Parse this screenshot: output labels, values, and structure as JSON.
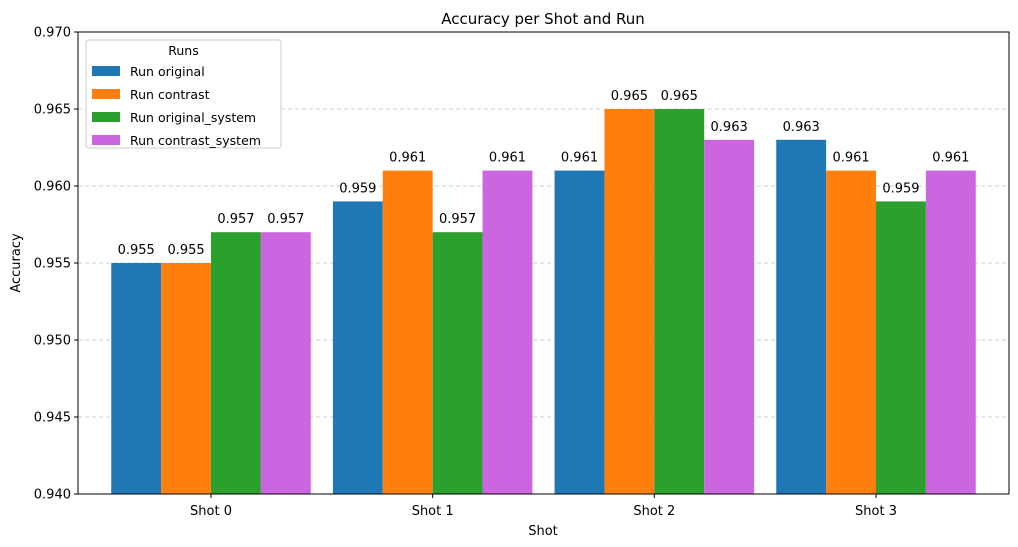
{
  "chart_data": {
    "type": "bar",
    "title": "Accuracy per Shot and Run",
    "xlabel": "Shot",
    "ylabel": "Accuracy",
    "categories": [
      "Shot 0",
      "Shot 1",
      "Shot 2",
      "Shot 3"
    ],
    "ylim": [
      0.94,
      0.97
    ],
    "yticks": [
      "0.940",
      "0.945",
      "0.950",
      "0.955",
      "0.960",
      "0.965",
      "0.970"
    ],
    "grid": "y-dashed",
    "legend": {
      "title": "Runs",
      "placement": "top-left"
    },
    "series": [
      {
        "name": "Run original",
        "color": "#1f77b4",
        "values": [
          0.955,
          0.959,
          0.961,
          0.963
        ],
        "labels": [
          "0.955",
          "0.959",
          "0.961",
          "0.963"
        ]
      },
      {
        "name": "Run contrast",
        "color": "#ff7f0e",
        "values": [
          0.955,
          0.961,
          0.965,
          0.961
        ],
        "labels": [
          "0.955",
          "0.961",
          "0.965",
          "0.961"
        ]
      },
      {
        "name": "Run original_system",
        "color": "#2ca02c",
        "values": [
          0.957,
          0.957,
          0.965,
          0.959
        ],
        "labels": [
          "0.957",
          "0.957",
          "0.965",
          "0.959"
        ]
      },
      {
        "name": "Run contrast_system",
        "color": "#cc66e0",
        "values": [
          0.957,
          0.961,
          0.963,
          0.961
        ],
        "labels": [
          "0.957",
          "0.961",
          "0.963",
          "0.961"
        ]
      }
    ]
  }
}
